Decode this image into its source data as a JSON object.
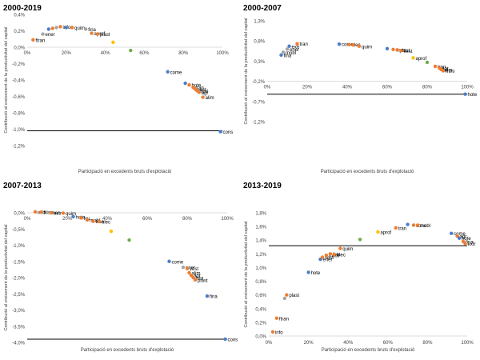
{
  "colors": {
    "blue": "#4a7ec7",
    "orange": "#ed7d31",
    "gray": "#a5a5a5",
    "yellow": "#ffc000",
    "green": "#70ad47"
  },
  "chart_data": [
    {
      "type": "scatter",
      "title": "2000-2019",
      "xlabel": "Participació en excedents bruts d'explotació",
      "ylabel": "Contribució al creixement de la productivitat del capital",
      "xlim": [
        0,
        100
      ],
      "ylim": [
        -1.2,
        0.4
      ],
      "xticks": [
        "0%",
        "20%",
        "40%",
        "60%",
        "80%",
        "100%"
      ],
      "yticks": [
        "0,4%",
        "0,2%",
        "0,0%",
        "-0,2%",
        "-0,4%",
        "-0,6%",
        "-0,8%",
        "-1,0%",
        "-1,2%"
      ],
      "hline": -1.02,
      "points": [
        {
          "x": 3,
          "y": 0.09,
          "c": "orange",
          "label": "ftran"
        },
        {
          "x": 8,
          "y": 0.16,
          "c": "gray",
          "label": "ener"
        },
        {
          "x": 11,
          "y": 0.22,
          "c": "blue",
          "label": ""
        },
        {
          "x": 13,
          "y": 0.23,
          "c": "orange",
          "label": ""
        },
        {
          "x": 15,
          "y": 0.24,
          "c": "gray",
          "label": ""
        },
        {
          "x": 17,
          "y": 0.25,
          "c": "orange",
          "label": "info"
        },
        {
          "x": 20,
          "y": 0.24,
          "c": "blue",
          "label": ""
        },
        {
          "x": 23,
          "y": 0.24,
          "c": "orange",
          "label": "quim"
        },
        {
          "x": 30,
          "y": 0.22,
          "c": "gray",
          "label": "fina"
        },
        {
          "x": 33,
          "y": 0.17,
          "c": "orange",
          "label": "aprof"
        },
        {
          "x": 36,
          "y": 0.16,
          "c": "orange",
          "label": "plast"
        },
        {
          "x": 44,
          "y": 0.06,
          "c": "yellow",
          "label": ""
        },
        {
          "x": 53,
          "y": -0.04,
          "c": "green",
          "label": ""
        },
        {
          "x": 72,
          "y": -0.3,
          "c": "blue",
          "label": "come"
        },
        {
          "x": 81,
          "y": -0.44,
          "c": "blue",
          "label": ""
        },
        {
          "x": 83,
          "y": -0.46,
          "c": "orange",
          "label": "hote"
        },
        {
          "x": 85,
          "y": -0.49,
          "c": "orange",
          "label": "tran"
        },
        {
          "x": 86,
          "y": -0.51,
          "c": "orange",
          "label": "vest"
        },
        {
          "x": 87,
          "y": -0.53,
          "c": "orange",
          "label": "mini"
        },
        {
          "x": 88,
          "y": -0.55,
          "c": "orange",
          "label": "agr"
        },
        {
          "x": 90,
          "y": -0.61,
          "c": "orange",
          "label": "alim"
        },
        {
          "x": 99,
          "y": -1.03,
          "c": "blue",
          "label": "cons"
        }
      ]
    },
    {
      "type": "scatter",
      "title": "2000-2007",
      "xlabel": "Participació en excedents bruts d'explotació",
      "ylabel": "Contribució al creixement de la productivitat del capital",
      "xlim": [
        0,
        100
      ],
      "ylim": [
        -1.2,
        1.3
      ],
      "xticks": [
        "0%",
        "20%",
        "40%",
        "60%",
        "80%",
        "100%"
      ],
      "yticks": [
        "1,3%",
        "0,8%",
        "0,3%",
        "-0,2%",
        "-0,7%",
        "-1,2%"
      ],
      "hline": -0.52,
      "points": [
        {
          "x": 7,
          "y": 0.45,
          "c": "blue",
          "label": "fina"
        },
        {
          "x": 8,
          "y": 0.52,
          "c": "gray",
          "label": "mobl"
        },
        {
          "x": 10,
          "y": 0.6,
          "c": "gray",
          "label": "ener"
        },
        {
          "x": 11,
          "y": 0.67,
          "c": "blue",
          "label": "extr"
        },
        {
          "x": 15,
          "y": 0.73,
          "c": "orange",
          "label": "tran"
        },
        {
          "x": 36,
          "y": 0.72,
          "c": "blue",
          "label": "come"
        },
        {
          "x": 41,
          "y": 0.71,
          "c": "orange",
          "label": "elec"
        },
        {
          "x": 43,
          "y": 0.7,
          "c": "orange",
          "label": ""
        },
        {
          "x": 46,
          "y": 0.67,
          "c": "orange",
          "label": "quim"
        },
        {
          "x": 60,
          "y": 0.61,
          "c": "blue",
          "label": ""
        },
        {
          "x": 63,
          "y": 0.59,
          "c": "orange",
          "label": "cons"
        },
        {
          "x": 65,
          "y": 0.58,
          "c": "orange",
          "label": "plast"
        },
        {
          "x": 67,
          "y": 0.56,
          "c": "orange",
          "label": "vest"
        },
        {
          "x": 73,
          "y": 0.38,
          "c": "yellow",
          "label": "aprof"
        },
        {
          "x": 80,
          "y": 0.27,
          "c": "green",
          "label": ""
        },
        {
          "x": 84,
          "y": 0.17,
          "c": "orange",
          "label": "tran"
        },
        {
          "x": 86,
          "y": 0.13,
          "c": "orange",
          "label": "agr"
        },
        {
          "x": 87,
          "y": 0.09,
          "c": "orange",
          "label": "alim"
        },
        {
          "x": 88,
          "y": 0.06,
          "c": "orange",
          "label": "mini"
        },
        {
          "x": 99,
          "y": -0.52,
          "c": "blue",
          "label": "hote"
        }
      ]
    },
    {
      "type": "scatter",
      "title": "2007-2013",
      "xlabel": "Participació en excedents bruts d'explotació",
      "ylabel": "Contribució al creixement de la productivitat del capital",
      "xlim": [
        0,
        100
      ],
      "ylim": [
        -4.0,
        0.0
      ],
      "xticks": [
        "0%",
        "20%",
        "40%",
        "60%",
        "80%",
        "100%"
      ],
      "yticks": [
        "0,0%",
        "-0,5%",
        "-1,0%",
        "-1,5%",
        "-2,0%",
        "-2,5%",
        "-3,0%",
        "-3,5%",
        "-4,0%"
      ],
      "hline": -3.9,
      "points": [
        {
          "x": 4,
          "y": 0.03,
          "c": "orange",
          "label": "info"
        },
        {
          "x": 7,
          "y": 0.02,
          "c": "orange",
          "label": "ftran"
        },
        {
          "x": 10,
          "y": 0.01,
          "c": "gray",
          "label": "ener"
        },
        {
          "x": 12,
          "y": 0.0,
          "c": "orange",
          "label": "extr"
        },
        {
          "x": 18,
          "y": -0.01,
          "c": "orange",
          "label": "quim"
        },
        {
          "x": 23,
          "y": -0.12,
          "c": "blue",
          "label": "hote"
        },
        {
          "x": 27,
          "y": -0.16,
          "c": "orange",
          "label": "fcu"
        },
        {
          "x": 30,
          "y": -0.22,
          "c": "orange",
          "label": "mobl"
        },
        {
          "x": 33,
          "y": -0.26,
          "c": "orange",
          "label": "tran"
        },
        {
          "x": 36,
          "y": -0.27,
          "c": "orange",
          "label": "elec"
        },
        {
          "x": 42,
          "y": -0.57,
          "c": "yellow",
          "label": ""
        },
        {
          "x": 51,
          "y": -0.84,
          "c": "green",
          "label": ""
        },
        {
          "x": 71,
          "y": -1.5,
          "c": "blue",
          "label": "come"
        },
        {
          "x": 78,
          "y": -1.68,
          "c": "gray",
          "label": "ener"
        },
        {
          "x": 80,
          "y": -1.72,
          "c": "orange",
          "label": "vest"
        },
        {
          "x": 81,
          "y": -1.85,
          "c": "orange",
          "label": "alim"
        },
        {
          "x": 82,
          "y": -1.93,
          "c": "orange",
          "label": "agr"
        },
        {
          "x": 83,
          "y": -2.0,
          "c": "orange",
          "label": "fsta"
        },
        {
          "x": 84,
          "y": -2.07,
          "c": "orange",
          "label": "plast"
        },
        {
          "x": 90,
          "y": -2.57,
          "c": "blue",
          "label": "fina"
        },
        {
          "x": 99,
          "y": -3.9,
          "c": "blue",
          "label": "cons"
        }
      ]
    },
    {
      "type": "scatter",
      "title": "2013-2019",
      "xlabel": "Participació en excedents bruts d'explotació",
      "ylabel": "Contribució al creixement de la productivitat del capital",
      "xlim": [
        0,
        100
      ],
      "ylim": [
        0.0,
        1.8
      ],
      "xticks": [
        "0%",
        "20%",
        "40%",
        "60%",
        "80%",
        "100%"
      ],
      "yticks": [
        "1,8%",
        "1,6%",
        "1,4%",
        "1,2%",
        "1,0%",
        "0,8%",
        "0,6%",
        "0,4%",
        "0,2%",
        "0,0%"
      ],
      "hline": 1.32,
      "points": [
        {
          "x": 2,
          "y": 0.06,
          "c": "orange",
          "label": "info"
        },
        {
          "x": 4,
          "y": 0.26,
          "c": "orange",
          "label": "ftran"
        },
        {
          "x": 8,
          "y": 0.55,
          "c": "gray",
          "label": ""
        },
        {
          "x": 9,
          "y": 0.6,
          "c": "orange",
          "label": "plast"
        },
        {
          "x": 20,
          "y": 0.93,
          "c": "blue",
          "label": "hote"
        },
        {
          "x": 26,
          "y": 1.12,
          "c": "blue",
          "label": "ener"
        },
        {
          "x": 27,
          "y": 1.15,
          "c": "orange",
          "label": "vest"
        },
        {
          "x": 29,
          "y": 1.18,
          "c": "orange",
          "label": "mobl"
        },
        {
          "x": 31,
          "y": 1.2,
          "c": "orange",
          "label": "fsta"
        },
        {
          "x": 33,
          "y": 1.19,
          "c": "orange",
          "label": "elec"
        },
        {
          "x": 36,
          "y": 1.28,
          "c": "orange",
          "label": "quim"
        },
        {
          "x": 46,
          "y": 1.41,
          "c": "green",
          "label": ""
        },
        {
          "x": 55,
          "y": 1.52,
          "c": "yellow",
          "label": "aprof"
        },
        {
          "x": 64,
          "y": 1.58,
          "c": "orange",
          "label": "tran"
        },
        {
          "x": 70,
          "y": 1.63,
          "c": "blue",
          "label": ""
        },
        {
          "x": 73,
          "y": 1.62,
          "c": "orange",
          "label": "cons"
        },
        {
          "x": 75,
          "y": 1.62,
          "c": "orange",
          "label": "mobl"
        },
        {
          "x": 92,
          "y": 1.5,
          "c": "blue",
          "label": "come"
        },
        {
          "x": 95,
          "y": 1.46,
          "c": "orange",
          "label": "agr"
        },
        {
          "x": 96,
          "y": 1.43,
          "c": "blue",
          "label": "hote"
        },
        {
          "x": 98,
          "y": 1.38,
          "c": "orange",
          "label": "fina"
        },
        {
          "x": 99,
          "y": 1.35,
          "c": "orange",
          "label": "extr"
        }
      ]
    }
  ]
}
